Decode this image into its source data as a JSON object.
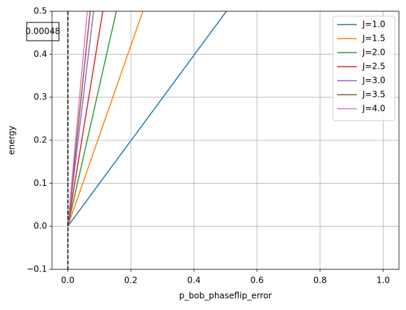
{
  "chart_data": {
    "type": "line",
    "xlabel": "p_bob_phaseflip_error",
    "ylabel": "energy",
    "xlim": [
      -0.05,
      1.05
    ],
    "ylim": [
      -0.1,
      0.5
    ],
    "xticks": [
      {
        "value": 0,
        "label": "0.0"
      },
      {
        "value": 0.2,
        "label": "0.2"
      },
      {
        "value": 0.4,
        "label": "0.4"
      },
      {
        "value": 0.6,
        "label": "0.6"
      },
      {
        "value": 0.8,
        "label": "0.8"
      },
      {
        "value": 1,
        "label": "1.0"
      }
    ],
    "yticks": [
      {
        "value": -0.1,
        "label": "−0.1"
      },
      {
        "value": 0,
        "label": "0.0"
      },
      {
        "value": 0.1,
        "label": "0.1"
      },
      {
        "value": 0.2,
        "label": "0.2"
      },
      {
        "value": 0.3,
        "label": "0.3"
      },
      {
        "value": 0.4,
        "label": "0.4"
      },
      {
        "value": 0.5,
        "label": "0.5"
      }
    ],
    "grid": true,
    "legend": "upper right",
    "series": [
      {
        "name": "J=1.0",
        "color": "#1f77b4",
        "x": [
          0,
          0.503
        ],
        "values": [
          0,
          0.5
        ]
      },
      {
        "name": "J=1.5",
        "color": "#ff7f0e",
        "x": [
          0,
          0.238
        ],
        "values": [
          0,
          0.5
        ]
      },
      {
        "name": "J=2.0",
        "color": "#2ca02c",
        "x": [
          0,
          0.154
        ],
        "values": [
          0,
          0.5
        ]
      },
      {
        "name": "J=2.5",
        "color": "#d62728",
        "x": [
          0,
          0.111
        ],
        "values": [
          0,
          0.5
        ]
      },
      {
        "name": "J=3.0",
        "color": "#9467bd",
        "x": [
          0,
          0.082
        ],
        "values": [
          0,
          0.5
        ]
      },
      {
        "name": "J=3.5",
        "color": "#8c564b",
        "x": [
          0,
          0.071
        ],
        "values": [
          0,
          0.5
        ]
      },
      {
        "name": "J=4.0",
        "color": "#e377c2",
        "x": [
          0,
          0.062
        ],
        "values": [
          0,
          0.5
        ]
      }
    ],
    "vline": {
      "x": 0.00048,
      "color": "#000000"
    }
  }
}
